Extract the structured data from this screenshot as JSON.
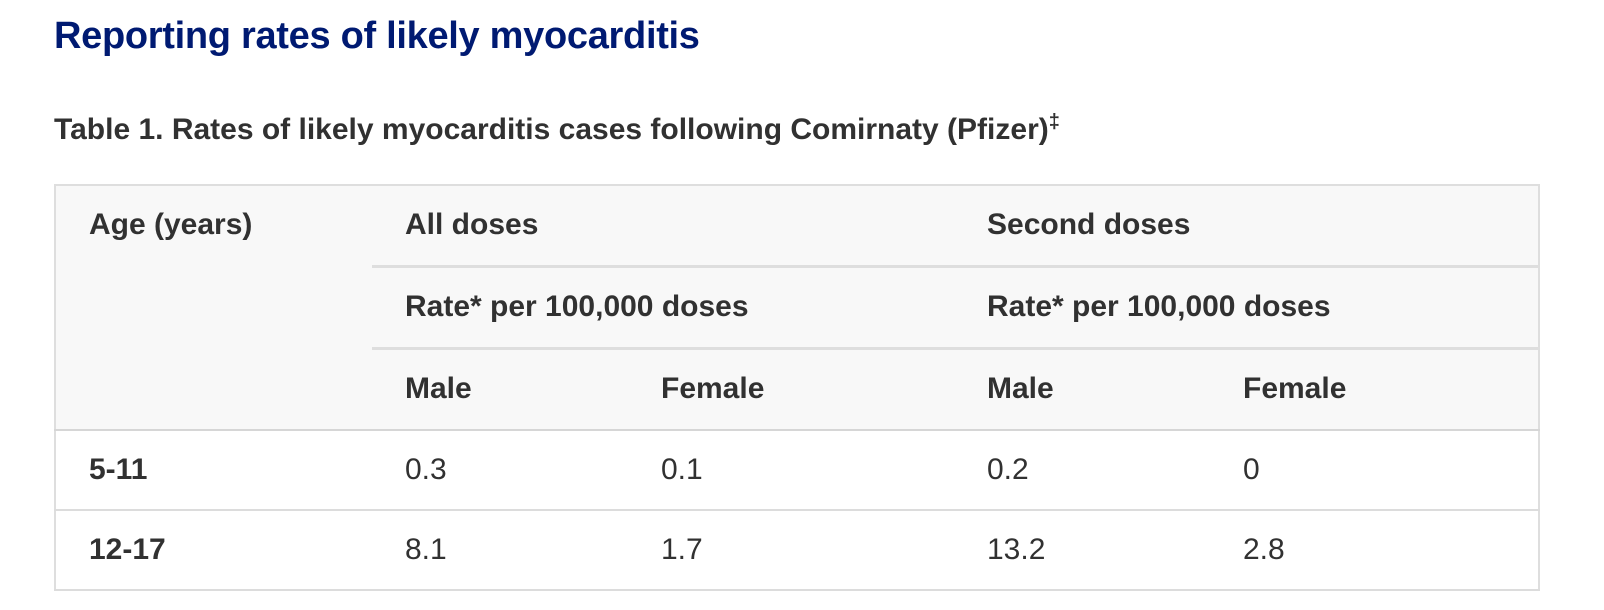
{
  "page": {
    "title": "Reporting rates of likely myocarditis"
  },
  "table": {
    "caption": "Table 1. Rates of likely myocarditis cases following Comirnaty (Pfizer)",
    "caption_mark": "‡",
    "headers": {
      "age": "Age (years)",
      "group_all": "All doses",
      "group_second": "Second doses",
      "rate_all": "Rate* per 100,000 doses",
      "rate_second": "Rate* per 100,000 doses",
      "male_all": "Male",
      "female_all": "Female",
      "male_second": "Male",
      "female_second": "Female"
    },
    "rows": [
      {
        "age": "5-11",
        "all_male": "0.3",
        "all_female": "0.1",
        "second_male": "0.2",
        "second_female": "0"
      },
      {
        "age": "12-17",
        "all_male": "8.1",
        "all_female": "1.7",
        "second_male": "13.2",
        "second_female": "2.8"
      }
    ]
  }
}
